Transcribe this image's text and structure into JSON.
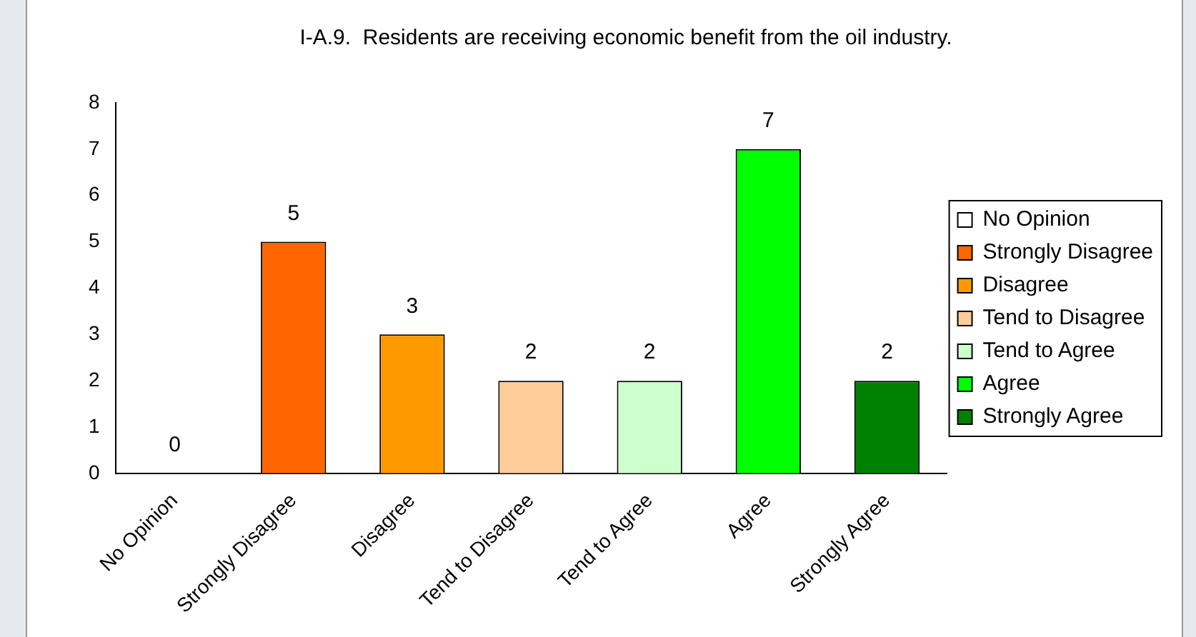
{
  "chart_data": {
    "type": "bar",
    "title": "I-A.9.  Residents are receiving economic benefit from the oil industry.",
    "categories": [
      "No Opinion",
      "Strongly Disagree",
      "Disagree",
      "Tend to Disagree",
      "Tend to Agree",
      "Agree",
      "Strongly Agree"
    ],
    "series": [
      {
        "name": "No Opinion",
        "color": "#ffffff",
        "values": [
          0,
          null,
          null,
          null,
          null,
          null,
          null
        ]
      },
      {
        "name": "Strongly Disagree",
        "color": "#ff6600",
        "values": [
          null,
          5,
          null,
          null,
          null,
          null,
          null
        ]
      },
      {
        "name": "Disagree",
        "color": "#ff9900",
        "values": [
          null,
          null,
          3,
          null,
          null,
          null,
          null
        ]
      },
      {
        "name": "Tend to Disagree",
        "color": "#ffcc99",
        "values": [
          null,
          null,
          null,
          2,
          null,
          null,
          null
        ]
      },
      {
        "name": "Tend to Agree",
        "color": "#ccffcc",
        "values": [
          null,
          null,
          null,
          null,
          2,
          null,
          null
        ]
      },
      {
        "name": "Agree",
        "color": "#00ff00",
        "values": [
          null,
          null,
          null,
          null,
          null,
          7,
          null
        ]
      },
      {
        "name": "Strongly Agree",
        "color": "#008000",
        "values": [
          null,
          null,
          null,
          null,
          null,
          null,
          2
        ]
      }
    ],
    "ylim": [
      0,
      8
    ],
    "yticks": [
      0,
      1,
      2,
      3,
      4,
      5,
      6,
      7,
      8
    ],
    "grid": false,
    "legend": "right",
    "data_labels": true
  }
}
